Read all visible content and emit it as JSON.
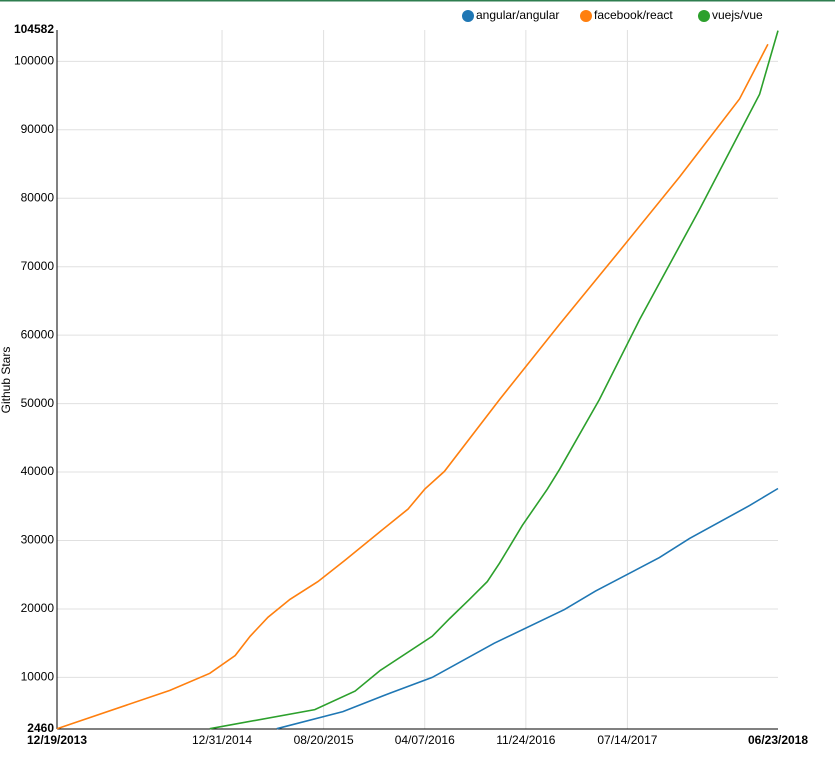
{
  "chart_data": {
    "type": "line",
    "y_label": "Github Stars",
    "xlim": [
      "12/19/2013",
      "06/23/2018"
    ],
    "xticks": [
      "12/19/2013",
      "12/31/2014",
      "08/20/2015",
      "04/07/2016",
      "11/24/2016",
      "07/14/2017",
      "06/23/2018"
    ],
    "ylim": [
      2460,
      104582
    ],
    "yticks": [
      2460,
      10000,
      20000,
      30000,
      40000,
      50000,
      60000,
      70000,
      80000,
      90000,
      100000,
      104582
    ],
    "grid": true,
    "legend": "top-right",
    "series": [
      {
        "name": "angular/angular",
        "color": "#1f77b4",
        "x": [
          "05/05/2015",
          "10/03/2015",
          "01/19/2016",
          "04/24/2016",
          "09/13/2016",
          "02/20/2017",
          "05/02/2017",
          "09/25/2017",
          "12/03/2017",
          "04/19/2018",
          "06/23/2018"
        ],
        "values": [
          2500,
          5000,
          7700,
          10000,
          15000,
          19900,
          22600,
          27500,
          30300,
          35100,
          37600
        ]
      },
      {
        "name": "facebook/react",
        "color": "#ff7f0e",
        "x": [
          "12/19/2013",
          "09/03/2014",
          "12/03/2014",
          "01/30/2015",
          "03/05/2015",
          "04/15/2015",
          "06/04/2015",
          "08/07/2015",
          "10/08/2015",
          "12/27/2015",
          "02/29/2016",
          "04/07/2016",
          "05/22/2016",
          "09/25/2016",
          "02/09/2017",
          "06/26/2017",
          "11/10/2017",
          "03/27/2018",
          "05/31/2018"
        ],
        "values": [
          2500,
          8100,
          10600,
          13200,
          16000,
          18800,
          21400,
          24000,
          27100,
          31300,
          34600,
          37500,
          40100,
          50600,
          61600,
          72300,
          83100,
          94500,
          102500
        ]
      },
      {
        "name": "vuejs/vue",
        "color": "#2ca02c",
        "x": [
          "12/03/2014",
          "07/31/2015",
          "10/31/2015",
          "12/27/2015",
          "04/24/2016",
          "06/03/2016",
          "07/18/2016",
          "08/28/2016",
          "09/25/2016",
          "11/16/2016",
          "01/12/2017",
          "02/09/2017",
          "05/11/2017",
          "08/11/2017",
          "12/26/2017",
          "05/12/2018",
          "06/23/2018"
        ],
        "values": [
          2500,
          5300,
          8000,
          11000,
          16000,
          18600,
          21400,
          24000,
          26700,
          32200,
          37500,
          40400,
          50600,
          62300,
          78400,
          95200,
          104500
        ]
      }
    ]
  }
}
